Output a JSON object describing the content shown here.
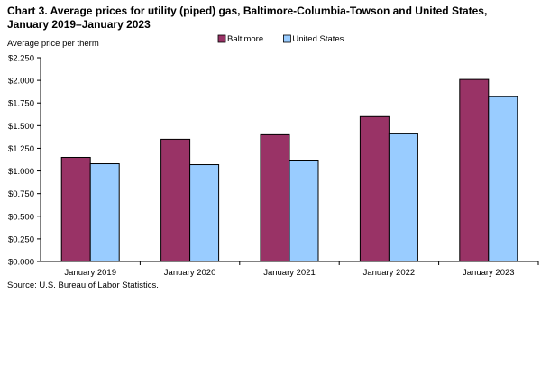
{
  "chart_data": {
    "type": "bar",
    "title": "Chart 3. Average prices for utility (piped) gas, Baltimore-Columbia-Towson and United States, January 2019–January 2023",
    "ylabel": "Average price per therm",
    "xlabel": "",
    "categories": [
      "January 2019",
      "January 2020",
      "January 2021",
      "January 2022",
      "January 2023"
    ],
    "series": [
      {
        "name": "Baltimore",
        "color": "#993366",
        "values": [
          1.15,
          1.35,
          1.4,
          1.6,
          2.01
        ]
      },
      {
        "name": "United States",
        "color": "#99ccff",
        "values": [
          1.08,
          1.07,
          1.12,
          1.41,
          1.82
        ]
      }
    ],
    "ylim": [
      0,
      2.25
    ],
    "yticks": [
      0,
      0.25,
      0.5,
      0.75,
      1.0,
      1.25,
      1.5,
      1.75,
      2.0,
      2.25
    ],
    "ytick_labels": [
      "$0.000",
      "$0.250",
      "$0.500",
      "$0.750",
      "$1.000",
      "$1.250",
      "$1.500",
      "$1.750",
      "$2.000",
      "$2.250"
    ],
    "grid": false,
    "legend_position": "top-center",
    "source": "Source: U.S. Bureau of Labor Statistics."
  }
}
